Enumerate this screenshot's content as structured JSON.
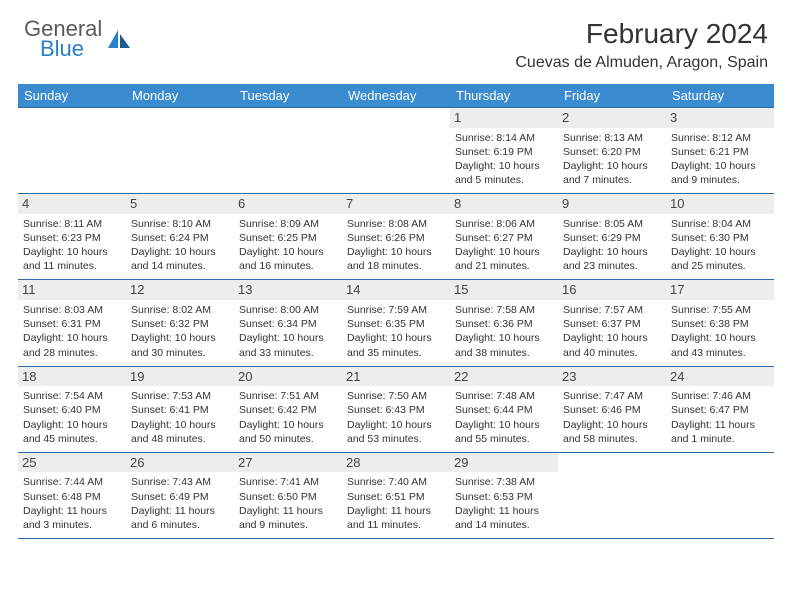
{
  "logo": {
    "word1": "General",
    "word2": "Blue"
  },
  "title": "February 2024",
  "location": "Cuevas de Almuden, Aragon, Spain",
  "colors": {
    "header_bg": "#3b8bd0",
    "border": "#2e6aa5",
    "daynum_bg": "#ededed",
    "logo_gray": "#5a5a5a",
    "logo_blue": "#2a7fc9"
  },
  "columns": [
    "Sunday",
    "Monday",
    "Tuesday",
    "Wednesday",
    "Thursday",
    "Friday",
    "Saturday"
  ],
  "weeks": [
    [
      null,
      null,
      null,
      null,
      {
        "n": "1",
        "sr": "8:14 AM",
        "ss": "6:19 PM",
        "dl": "10 hours and 5 minutes."
      },
      {
        "n": "2",
        "sr": "8:13 AM",
        "ss": "6:20 PM",
        "dl": "10 hours and 7 minutes."
      },
      {
        "n": "3",
        "sr": "8:12 AM",
        "ss": "6:21 PM",
        "dl": "10 hours and 9 minutes."
      }
    ],
    [
      {
        "n": "4",
        "sr": "8:11 AM",
        "ss": "6:23 PM",
        "dl": "10 hours and 11 minutes."
      },
      {
        "n": "5",
        "sr": "8:10 AM",
        "ss": "6:24 PM",
        "dl": "10 hours and 14 minutes."
      },
      {
        "n": "6",
        "sr": "8:09 AM",
        "ss": "6:25 PM",
        "dl": "10 hours and 16 minutes."
      },
      {
        "n": "7",
        "sr": "8:08 AM",
        "ss": "6:26 PM",
        "dl": "10 hours and 18 minutes."
      },
      {
        "n": "8",
        "sr": "8:06 AM",
        "ss": "6:27 PM",
        "dl": "10 hours and 21 minutes."
      },
      {
        "n": "9",
        "sr": "8:05 AM",
        "ss": "6:29 PM",
        "dl": "10 hours and 23 minutes."
      },
      {
        "n": "10",
        "sr": "8:04 AM",
        "ss": "6:30 PM",
        "dl": "10 hours and 25 minutes."
      }
    ],
    [
      {
        "n": "11",
        "sr": "8:03 AM",
        "ss": "6:31 PM",
        "dl": "10 hours and 28 minutes."
      },
      {
        "n": "12",
        "sr": "8:02 AM",
        "ss": "6:32 PM",
        "dl": "10 hours and 30 minutes."
      },
      {
        "n": "13",
        "sr": "8:00 AM",
        "ss": "6:34 PM",
        "dl": "10 hours and 33 minutes."
      },
      {
        "n": "14",
        "sr": "7:59 AM",
        "ss": "6:35 PM",
        "dl": "10 hours and 35 minutes."
      },
      {
        "n": "15",
        "sr": "7:58 AM",
        "ss": "6:36 PM",
        "dl": "10 hours and 38 minutes."
      },
      {
        "n": "16",
        "sr": "7:57 AM",
        "ss": "6:37 PM",
        "dl": "10 hours and 40 minutes."
      },
      {
        "n": "17",
        "sr": "7:55 AM",
        "ss": "6:38 PM",
        "dl": "10 hours and 43 minutes."
      }
    ],
    [
      {
        "n": "18",
        "sr": "7:54 AM",
        "ss": "6:40 PM",
        "dl": "10 hours and 45 minutes."
      },
      {
        "n": "19",
        "sr": "7:53 AM",
        "ss": "6:41 PM",
        "dl": "10 hours and 48 minutes."
      },
      {
        "n": "20",
        "sr": "7:51 AM",
        "ss": "6:42 PM",
        "dl": "10 hours and 50 minutes."
      },
      {
        "n": "21",
        "sr": "7:50 AM",
        "ss": "6:43 PM",
        "dl": "10 hours and 53 minutes."
      },
      {
        "n": "22",
        "sr": "7:48 AM",
        "ss": "6:44 PM",
        "dl": "10 hours and 55 minutes."
      },
      {
        "n": "23",
        "sr": "7:47 AM",
        "ss": "6:46 PM",
        "dl": "10 hours and 58 minutes."
      },
      {
        "n": "24",
        "sr": "7:46 AM",
        "ss": "6:47 PM",
        "dl": "11 hours and 1 minute."
      }
    ],
    [
      {
        "n": "25",
        "sr": "7:44 AM",
        "ss": "6:48 PM",
        "dl": "11 hours and 3 minutes."
      },
      {
        "n": "26",
        "sr": "7:43 AM",
        "ss": "6:49 PM",
        "dl": "11 hours and 6 minutes."
      },
      {
        "n": "27",
        "sr": "7:41 AM",
        "ss": "6:50 PM",
        "dl": "11 hours and 9 minutes."
      },
      {
        "n": "28",
        "sr": "7:40 AM",
        "ss": "6:51 PM",
        "dl": "11 hours and 11 minutes."
      },
      {
        "n": "29",
        "sr": "7:38 AM",
        "ss": "6:53 PM",
        "dl": "11 hours and 14 minutes."
      },
      null,
      null
    ]
  ],
  "labels": {
    "sunrise": "Sunrise: ",
    "sunset": "Sunset: ",
    "daylight": "Daylight: "
  }
}
